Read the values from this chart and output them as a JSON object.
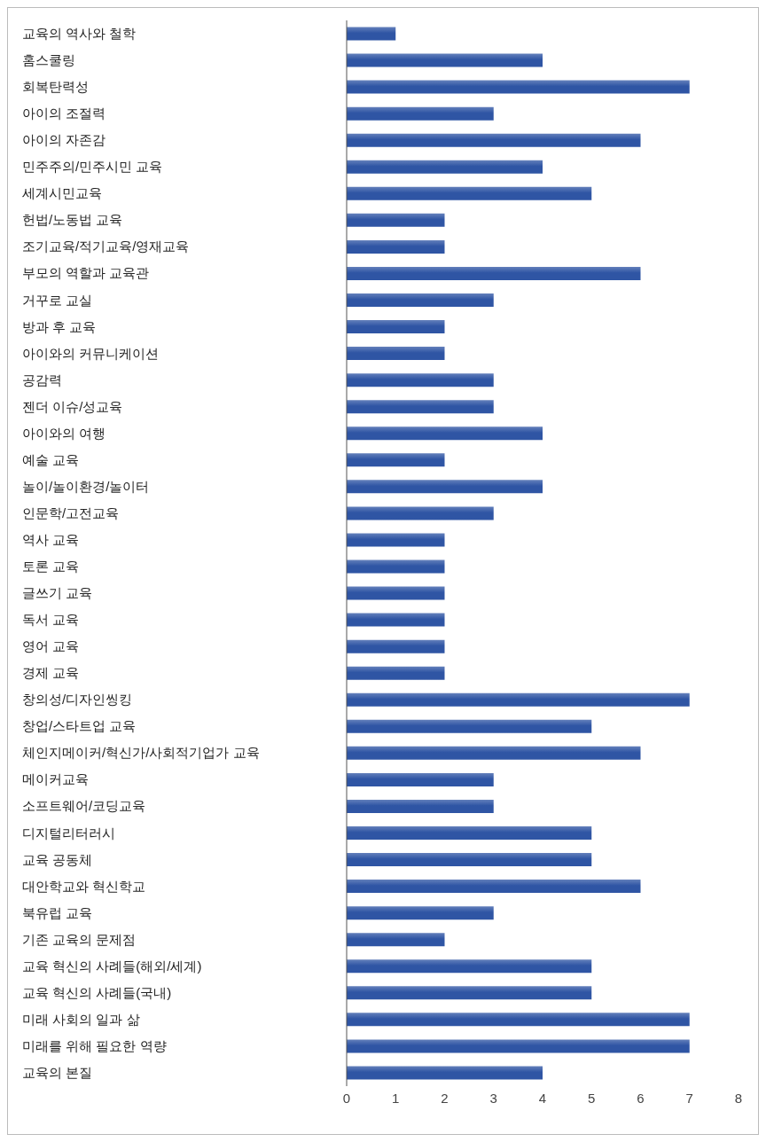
{
  "chart_data": {
    "type": "bar",
    "orientation": "horizontal",
    "color": "#2f55a4",
    "categories": [
      "교육의 역사와 철학",
      "홈스쿨링",
      "회복탄력성",
      "아이의 조절력",
      "아이의 자존감",
      "민주주의/민주시민 교육",
      "세계시민교육",
      "헌법/노동법 교육",
      "조기교육/적기교육/영재교육",
      "부모의 역할과 교육관",
      "거꾸로 교실",
      "방과 후 교육",
      "아이와의 커뮤니케이션",
      "공감력",
      "젠더 이슈/성교육",
      "아이와의 여행",
      "예술 교육",
      "놀이/놀이환경/놀이터",
      "인문학/고전교육",
      "역사 교육",
      "토론 교육",
      "글쓰기 교육",
      "독서 교육",
      "영어 교육",
      "경제 교육",
      "창의성/디자인씽킹",
      "창업/스타트업 교육",
      "체인지메이커/혁신가/사회적기업가 교육",
      "메이커교육",
      "소프트웨어/코딩교육",
      "디지털리터러시",
      "교육 공동체",
      "대안학교와 혁신학교",
      "북유럽 교육",
      "기존 교육의 문제점",
      "교육 혁신의 사례들(해외/세계)",
      "교육 혁신의 사례들(국내)",
      "미래 사회의 일과 삶",
      "미래를 위해 필요한 역량",
      "교육의 본질"
    ],
    "values": [
      1,
      4,
      7,
      3,
      6,
      4,
      5,
      2,
      2,
      6,
      3,
      2,
      2,
      3,
      3,
      4,
      2,
      4,
      3,
      2,
      2,
      2,
      2,
      2,
      2,
      7,
      5,
      6,
      3,
      3,
      5,
      5,
      6,
      3,
      2,
      5,
      5,
      7,
      7,
      4
    ],
    "xlim": [
      0,
      8
    ],
    "xticks": [
      0,
      1,
      2,
      3,
      4,
      5,
      6,
      7,
      8
    ]
  }
}
